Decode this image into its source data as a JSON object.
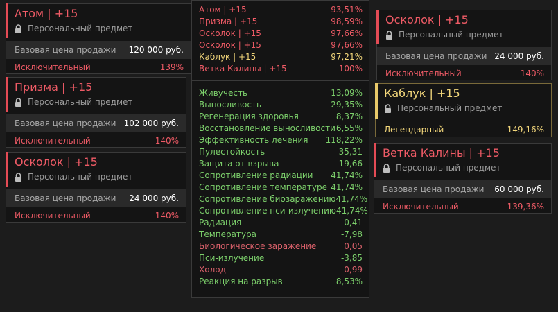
{
  "common": {
    "subtitle": "Персональный предмет",
    "price_label": "Базовая цена продажи"
  },
  "colors": {
    "exceptional": "#ef5b66",
    "legendary": "#f3d77b",
    "positive": "#7ccf6b",
    "negative": "#d9606a"
  },
  "cards": [
    {
      "title": "Атом | +15",
      "price": "120 000 руб.",
      "rarity": "Исключительный",
      "percent": "139%"
    },
    {
      "title": "Призма | +15",
      "price": "102 000 руб.",
      "rarity": "Исключительный",
      "percent": "140%"
    },
    {
      "title": "Осколок | +15",
      "price": "24 000 руб.",
      "rarity": "Исключительный",
      "percent": "140%"
    },
    {
      "title": "Осколок | +15",
      "price": "24 000 руб.",
      "rarity": "Исключительный",
      "percent": "140%"
    },
    {
      "title": "Каблук | +15",
      "rarity": "Легендарный",
      "percent": "149,16%"
    },
    {
      "title": "Ветка Калины | +15",
      "price": "60 000 руб.",
      "rarity": "Исключительный",
      "percent": "139,36%"
    }
  ],
  "summary": {
    "artifacts": [
      {
        "name": "Атом | +15",
        "value": "93,51%"
      },
      {
        "name": "Призма | +15",
        "value": "98,59%"
      },
      {
        "name": "Осколок | +15",
        "value": "97,66%"
      },
      {
        "name": "Осколок | +15",
        "value": "97,66%"
      },
      {
        "name": "Каблук | +15",
        "value": "97,21%"
      },
      {
        "name": "Ветка Калины | +15",
        "value": "100%"
      }
    ],
    "stats": [
      {
        "name": "Живучесть",
        "value": "13,09%"
      },
      {
        "name": "Выносливость",
        "value": "29,35%"
      },
      {
        "name": "Регенерация здоровья",
        "value": "8,37%"
      },
      {
        "name": "Восстановление выносливости",
        "value": "6,55%"
      },
      {
        "name": "Эффективность лечения",
        "value": "118,22%"
      },
      {
        "name": "Пулестойкость",
        "value": "35,31"
      },
      {
        "name": "Защита от взрыва",
        "value": "19,66"
      },
      {
        "name": "Сопротивление радиации",
        "value": "41,74%"
      },
      {
        "name": "Сопротивление температуре",
        "value": "41,74%"
      },
      {
        "name": "Сопротивление биозаражению",
        "value": "41,74%"
      },
      {
        "name": "Сопротивление пси-излучению",
        "value": "41,74%"
      },
      {
        "name": "Радиация",
        "value": "-0,41"
      },
      {
        "name": "Температура",
        "value": "-7,98"
      },
      {
        "name": "Биологическое заражение",
        "value": "0,05"
      },
      {
        "name": "Пси-излучение",
        "value": "-3,85"
      },
      {
        "name": "Холод",
        "value": "0,99"
      },
      {
        "name": "Реакция на разрыв",
        "value": "8,53%"
      }
    ]
  }
}
